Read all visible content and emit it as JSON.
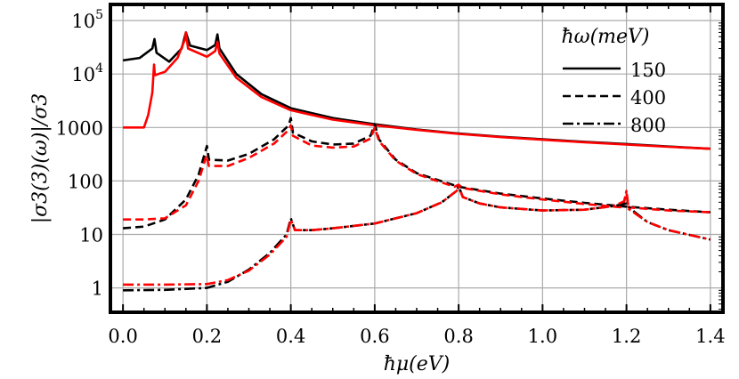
{
  "chart_data": {
    "type": "line",
    "xlabel": "ħμ(eV)",
    "ylabel": "|σ3(3)(ω)|/σ3",
    "xlim": [
      -0.03,
      1.43
    ],
    "ylim": [
      0.35,
      200000
    ],
    "yscale": "log",
    "grid": true,
    "xticks": [
      "0.0",
      "0.2",
      "0.4",
      "0.6",
      "0.8",
      "1.0",
      "1.2",
      "1.4"
    ],
    "xtick_values": [
      0,
      0.2,
      0.4,
      0.6,
      0.8,
      1.0,
      1.2,
      1.4
    ],
    "yticks": [
      "1",
      "10",
      "100",
      "1000",
      "10^4",
      "10^5"
    ],
    "ytick_values": [
      1,
      10,
      100,
      1000,
      10000,
      100000
    ],
    "legend": {
      "title": "ħω(meV)",
      "placement": "top-right",
      "entries": [
        "150",
        "400",
        "800"
      ]
    },
    "colors": {
      "black": "#000000",
      "red": "#ff0000"
    },
    "series": [
      {
        "legend": "150",
        "color": "#000000",
        "dash": "solid",
        "points": [
          [
            0,
            18000
          ],
          [
            0.04,
            20000
          ],
          [
            0.07,
            30000
          ],
          [
            0.075,
            45000
          ],
          [
            0.08,
            25000
          ],
          [
            0.11,
            17000
          ],
          [
            0.14,
            30000
          ],
          [
            0.15,
            60000
          ],
          [
            0.16,
            34000
          ],
          [
            0.2,
            28000
          ],
          [
            0.22,
            35000
          ],
          [
            0.225,
            55000
          ],
          [
            0.23,
            30000
          ],
          [
            0.27,
            10000
          ],
          [
            0.33,
            4200
          ],
          [
            0.4,
            2300
          ],
          [
            0.5,
            1500
          ],
          [
            0.6,
            1150
          ],
          [
            0.7,
            920
          ],
          [
            0.8,
            770
          ],
          [
            0.9,
            670
          ],
          [
            1.0,
            600
          ],
          [
            1.1,
            540
          ],
          [
            1.2,
            490
          ],
          [
            1.3,
            440
          ],
          [
            1.4,
            400
          ]
        ]
      },
      {
        "legend": "150",
        "color": "#ff0000",
        "dash": "solid",
        "points": [
          [
            0,
            1000
          ],
          [
            0.05,
            1000
          ],
          [
            0.06,
            1700
          ],
          [
            0.07,
            4500
          ],
          [
            0.074,
            15000
          ],
          [
            0.076,
            9500
          ],
          [
            0.1,
            11000
          ],
          [
            0.13,
            20000
          ],
          [
            0.148,
            45000
          ],
          [
            0.15,
            60000
          ],
          [
            0.155,
            30000
          ],
          [
            0.2,
            21000
          ],
          [
            0.22,
            27000
          ],
          [
            0.225,
            40000
          ],
          [
            0.23,
            24000
          ],
          [
            0.27,
            8500
          ],
          [
            0.33,
            3700
          ],
          [
            0.4,
            2100
          ],
          [
            0.5,
            1400
          ],
          [
            0.6,
            1100
          ],
          [
            0.7,
            900
          ],
          [
            0.8,
            760
          ],
          [
            0.9,
            660
          ],
          [
            1.0,
            590
          ],
          [
            1.1,
            530
          ],
          [
            1.2,
            480
          ],
          [
            1.3,
            435
          ],
          [
            1.4,
            400
          ]
        ]
      },
      {
        "legend": "400",
        "color": "#000000",
        "dash": "dashed",
        "points": [
          [
            0,
            13
          ],
          [
            0.05,
            14
          ],
          [
            0.1,
            19
          ],
          [
            0.15,
            45
          ],
          [
            0.18,
            130
          ],
          [
            0.2,
            450
          ],
          [
            0.205,
            250
          ],
          [
            0.25,
            240
          ],
          [
            0.3,
            320
          ],
          [
            0.36,
            600
          ],
          [
            0.395,
            1100
          ],
          [
            0.4,
            1500
          ],
          [
            0.405,
            800
          ],
          [
            0.45,
            550
          ],
          [
            0.5,
            480
          ],
          [
            0.55,
            500
          ],
          [
            0.59,
            700
          ],
          [
            0.6,
            1150
          ],
          [
            0.61,
            600
          ],
          [
            0.65,
            250
          ],
          [
            0.7,
            140
          ],
          [
            0.8,
            78
          ],
          [
            0.9,
            58
          ],
          [
            1.0,
            47
          ],
          [
            1.1,
            39
          ],
          [
            1.2,
            33
          ],
          [
            1.3,
            29
          ],
          [
            1.4,
            26
          ]
        ]
      },
      {
        "legend": "400",
        "color": "#ff0000",
        "dash": "dashed",
        "points": [
          [
            0,
            19
          ],
          [
            0.05,
            19
          ],
          [
            0.1,
            20
          ],
          [
            0.15,
            35
          ],
          [
            0.18,
            100
          ],
          [
            0.199,
            300
          ],
          [
            0.205,
            190
          ],
          [
            0.25,
            190
          ],
          [
            0.3,
            270
          ],
          [
            0.36,
            500
          ],
          [
            0.395,
            900
          ],
          [
            0.4,
            1100
          ],
          [
            0.405,
            700
          ],
          [
            0.45,
            460
          ],
          [
            0.5,
            420
          ],
          [
            0.55,
            440
          ],
          [
            0.59,
            620
          ],
          [
            0.6,
            1000
          ],
          [
            0.61,
            560
          ],
          [
            0.65,
            240
          ],
          [
            0.7,
            135
          ],
          [
            0.79,
            78
          ],
          [
            0.8,
            85
          ],
          [
            0.81,
            74
          ],
          [
            0.9,
            56
          ],
          [
            1.0,
            45
          ],
          [
            1.1,
            37
          ],
          [
            1.19,
            32
          ],
          [
            1.2,
            60
          ],
          [
            1.205,
            32
          ],
          [
            1.3,
            28
          ],
          [
            1.4,
            26
          ]
        ]
      },
      {
        "legend": "800",
        "color": "#000000",
        "dash": "dashdot",
        "points": [
          [
            0,
            0.9
          ],
          [
            0.1,
            0.92
          ],
          [
            0.2,
            1.0
          ],
          [
            0.25,
            1.3
          ],
          [
            0.3,
            2.2
          ],
          [
            0.35,
            4.5
          ],
          [
            0.39,
            10
          ],
          [
            0.4,
            20
          ],
          [
            0.41,
            12
          ],
          [
            0.45,
            12
          ],
          [
            0.5,
            13
          ],
          [
            0.6,
            16
          ],
          [
            0.7,
            25
          ],
          [
            0.76,
            40
          ],
          [
            0.795,
            65
          ],
          [
            0.8,
            80
          ],
          [
            0.81,
            50
          ],
          [
            0.85,
            38
          ],
          [
            0.9,
            32
          ],
          [
            1.0,
            28
          ],
          [
            1.1,
            29
          ],
          [
            1.17,
            34
          ],
          [
            1.2,
            38
          ],
          [
            1.21,
            30
          ],
          [
            1.25,
            17
          ],
          [
            1.3,
            12
          ],
          [
            1.4,
            8
          ]
        ]
      },
      {
        "legend": "800",
        "color": "#ff0000",
        "dash": "dashdot",
        "points": [
          [
            0,
            1.15
          ],
          [
            0.1,
            1.15
          ],
          [
            0.2,
            1.18
          ],
          [
            0.25,
            1.4
          ],
          [
            0.3,
            2.1
          ],
          [
            0.35,
            4.2
          ],
          [
            0.39,
            9
          ],
          [
            0.4,
            19
          ],
          [
            0.41,
            12
          ],
          [
            0.45,
            12
          ],
          [
            0.5,
            13
          ],
          [
            0.6,
            16
          ],
          [
            0.7,
            25
          ],
          [
            0.76,
            40
          ],
          [
            0.795,
            65
          ],
          [
            0.8,
            80
          ],
          [
            0.81,
            50
          ],
          [
            0.85,
            38
          ],
          [
            0.9,
            32
          ],
          [
            1.0,
            28
          ],
          [
            1.1,
            29
          ],
          [
            1.17,
            34
          ],
          [
            1.195,
            42
          ],
          [
            1.2,
            65
          ],
          [
            1.205,
            30
          ],
          [
            1.25,
            17
          ],
          [
            1.3,
            12
          ],
          [
            1.4,
            8
          ]
        ]
      }
    ]
  }
}
